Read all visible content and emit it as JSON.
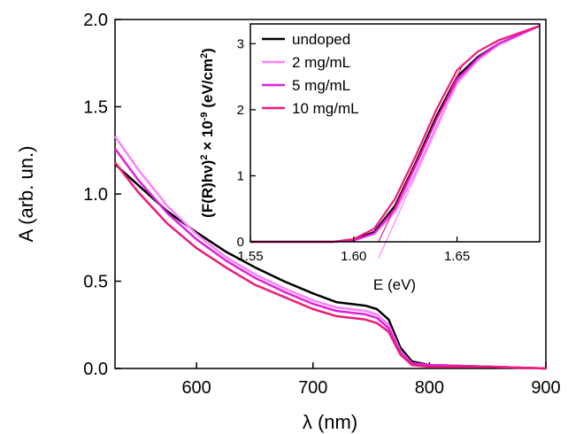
{
  "chart_data": [
    {
      "type": "line",
      "xlabel": "λ (nm)",
      "ylabel": "A (arb. un.)",
      "xlim": [
        530,
        900
      ],
      "ylim": [
        0,
        2.0
      ],
      "xticks": [
        600,
        700,
        800,
        900
      ],
      "yticks": [
        "0.0",
        "0.5",
        "1.0",
        "1.5",
        "2.0"
      ],
      "series": [
        {
          "name": "undoped",
          "color": "#000000",
          "points": [
            [
              530,
              1.17
            ],
            [
              550,
              1.05
            ],
            [
              575,
              0.9
            ],
            [
              600,
              0.78
            ],
            [
              625,
              0.67
            ],
            [
              650,
              0.58
            ],
            [
              675,
              0.5
            ],
            [
              700,
              0.43
            ],
            [
              720,
              0.38
            ],
            [
              745,
              0.36
            ],
            [
              755,
              0.34
            ],
            [
              765,
              0.28
            ],
            [
              775,
              0.12
            ],
            [
              785,
              0.04
            ],
            [
              800,
              0.02
            ],
            [
              850,
              0.01
            ],
            [
              900,
              0.0
            ]
          ]
        },
        {
          "name": "2 mg/mL",
          "color": "#ff80ff",
          "points": [
            [
              530,
              1.33
            ],
            [
              550,
              1.14
            ],
            [
              575,
              0.93
            ],
            [
              600,
              0.77
            ],
            [
              625,
              0.64
            ],
            [
              650,
              0.54
            ],
            [
              675,
              0.46
            ],
            [
              700,
              0.39
            ],
            [
              720,
              0.35
            ],
            [
              745,
              0.33
            ],
            [
              755,
              0.31
            ],
            [
              765,
              0.25
            ],
            [
              775,
              0.1
            ],
            [
              785,
              0.03
            ],
            [
              800,
              0.02
            ],
            [
              850,
              0.01
            ],
            [
              900,
              0.0
            ]
          ]
        },
        {
          "name": "5 mg/mL",
          "color": "#e020e0",
          "points": [
            [
              530,
              1.26
            ],
            [
              550,
              1.08
            ],
            [
              575,
              0.89
            ],
            [
              600,
              0.74
            ],
            [
              625,
              0.62
            ],
            [
              650,
              0.52
            ],
            [
              675,
              0.44
            ],
            [
              700,
              0.37
            ],
            [
              720,
              0.33
            ],
            [
              745,
              0.31
            ],
            [
              755,
              0.29
            ],
            [
              765,
              0.23
            ],
            [
              775,
              0.09
            ],
            [
              785,
              0.03
            ],
            [
              800,
              0.02
            ],
            [
              850,
              0.01
            ],
            [
              900,
              0.0
            ]
          ]
        },
        {
          "name": "10 mg/mL",
          "color": "#ee1a7a",
          "points": [
            [
              530,
              1.18
            ],
            [
              550,
              1.01
            ],
            [
              575,
              0.83
            ],
            [
              600,
              0.69
            ],
            [
              625,
              0.58
            ],
            [
              650,
              0.48
            ],
            [
              675,
              0.41
            ],
            [
              700,
              0.34
            ],
            [
              720,
              0.3
            ],
            [
              745,
              0.28
            ],
            [
              755,
              0.26
            ],
            [
              765,
              0.21
            ],
            [
              775,
              0.08
            ],
            [
              785,
              0.02
            ],
            [
              800,
              0.01
            ],
            [
              850,
              0.01
            ],
            [
              900,
              0.0
            ]
          ]
        }
      ]
    },
    {
      "type": "line",
      "xlabel": "E (eV)",
      "ylabel_main": "(F(R)hν)",
      "ylabel_sup1": "2",
      "ylabel_mid": " × 10",
      "ylabel_sup2": "-9",
      "ylabel_end": " (eV/cm",
      "ylabel_sup3": "2",
      "ylabel_close": ")",
      "xlim": [
        1.55,
        1.69
      ],
      "ylim": [
        0,
        3.3
      ],
      "xticks": [
        "1.55",
        "1.60",
        "1.65"
      ],
      "yticks": [
        "0",
        "1",
        "2",
        "3"
      ],
      "legend_position": "top-left",
      "series": [
        {
          "name": "undoped",
          "color": "#000000",
          "points": [
            [
              1.55,
              0.0
            ],
            [
              1.59,
              0.0
            ],
            [
              1.6,
              0.03
            ],
            [
              1.61,
              0.15
            ],
            [
              1.62,
              0.55
            ],
            [
              1.63,
              1.2
            ],
            [
              1.64,
              1.9
            ],
            [
              1.65,
              2.5
            ],
            [
              1.66,
              2.8
            ],
            [
              1.67,
              3.0
            ],
            [
              1.69,
              3.27
            ]
          ]
        },
        {
          "name": "2 mg/mL",
          "color": "#ff80ff",
          "points": [
            [
              1.55,
              0.0
            ],
            [
              1.59,
              0.0
            ],
            [
              1.6,
              0.02
            ],
            [
              1.61,
              0.12
            ],
            [
              1.62,
              0.45
            ],
            [
              1.63,
              1.05
            ],
            [
              1.64,
              1.75
            ],
            [
              1.65,
              2.4
            ],
            [
              1.66,
              2.75
            ],
            [
              1.67,
              2.98
            ],
            [
              1.69,
              3.27
            ]
          ]
        },
        {
          "name": "5 mg/mL",
          "color": "#e020e0",
          "points": [
            [
              1.55,
              0.0
            ],
            [
              1.59,
              0.0
            ],
            [
              1.6,
              0.02
            ],
            [
              1.61,
              0.13
            ],
            [
              1.62,
              0.5
            ],
            [
              1.63,
              1.15
            ],
            [
              1.64,
              1.85
            ],
            [
              1.65,
              2.45
            ],
            [
              1.66,
              2.78
            ],
            [
              1.67,
              3.0
            ],
            [
              1.69,
              3.27
            ]
          ]
        },
        {
          "name": "10 mg/mL",
          "color": "#ee1a7a",
          "points": [
            [
              1.55,
              0.0
            ],
            [
              1.59,
              0.0
            ],
            [
              1.6,
              0.04
            ],
            [
              1.61,
              0.2
            ],
            [
              1.62,
              0.65
            ],
            [
              1.63,
              1.3
            ],
            [
              1.64,
              2.0
            ],
            [
              1.65,
              2.6
            ],
            [
              1.66,
              2.88
            ],
            [
              1.67,
              3.05
            ],
            [
              1.69,
              3.27
            ]
          ]
        }
      ],
      "fit_lines": [
        {
          "color": "#ee1a7a",
          "points": [
            [
              1.612,
              0.0
            ],
            [
              1.653,
              2.7
            ]
          ]
        },
        {
          "color": "#ff80ff",
          "points": [
            [
              1.612,
              -0.25
            ],
            [
              1.645,
              2.05
            ]
          ]
        }
      ]
    }
  ]
}
